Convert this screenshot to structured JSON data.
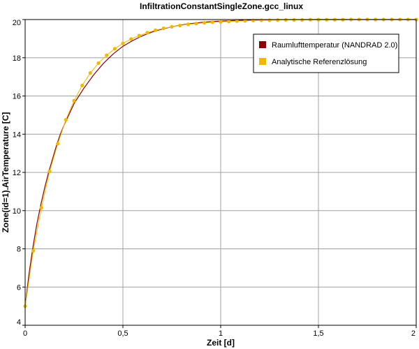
{
  "chart_data": {
    "type": "line",
    "title": "InfiltrationConstantSingleZone.gcc_linux",
    "xlabel": "Zeit [d]",
    "ylabel": "Zone(id=1).AirTemperature [C]",
    "xlim": [
      0,
      2
    ],
    "ylim": [
      4,
      20
    ],
    "x_ticks": [
      {
        "value": 0,
        "label": "0"
      },
      {
        "value": 0.5,
        "label": "0,5"
      },
      {
        "value": 1,
        "label": "1"
      },
      {
        "value": 1.5,
        "label": "1,5"
      },
      {
        "value": 2,
        "label": "2"
      }
    ],
    "y_ticks": [
      {
        "value": 4,
        "label": "4"
      },
      {
        "value": 6,
        "label": "6"
      },
      {
        "value": 8,
        "label": "8"
      },
      {
        "value": 10,
        "label": "10"
      },
      {
        "value": 12,
        "label": "12"
      },
      {
        "value": 14,
        "label": "14"
      },
      {
        "value": 16,
        "label": "16"
      },
      {
        "value": 18,
        "label": "18"
      },
      {
        "value": 20,
        "label": "20"
      }
    ],
    "grid": true,
    "legend_position": "top-right",
    "series": [
      {
        "name": "Raumlufttemperatur (NANDRAD 2.0)",
        "color": "#8b0000",
        "markers": false,
        "points": [
          [
            0,
            5.0
          ],
          [
            0.02,
            6.7
          ],
          [
            0.04,
            8.1
          ],
          [
            0.06,
            9.3
          ],
          [
            0.08,
            10.3
          ],
          [
            0.1,
            11.2
          ],
          [
            0.12,
            12.0
          ],
          [
            0.14,
            12.7
          ],
          [
            0.16,
            13.4
          ],
          [
            0.18,
            14.0
          ],
          [
            0.2,
            14.5
          ],
          [
            0.25,
            15.6
          ],
          [
            0.3,
            16.4
          ],
          [
            0.35,
            17.1
          ],
          [
            0.4,
            17.7
          ],
          [
            0.45,
            18.2
          ],
          [
            0.5,
            18.6
          ],
          [
            0.55,
            18.9
          ],
          [
            0.6,
            19.15
          ],
          [
            0.65,
            19.35
          ],
          [
            0.7,
            19.5
          ],
          [
            0.75,
            19.62
          ],
          [
            0.8,
            19.72
          ],
          [
            0.85,
            19.79
          ],
          [
            0.9,
            19.85
          ],
          [
            0.95,
            19.89
          ],
          [
            1.0,
            19.92
          ],
          [
            1.1,
            19.96
          ],
          [
            1.2,
            19.98
          ],
          [
            1.3,
            19.99
          ],
          [
            1.5,
            20.0
          ],
          [
            1.75,
            20.0
          ],
          [
            2.0,
            20.0
          ]
        ]
      },
      {
        "name": "Analytische Referenzlösung",
        "color": "#f0b800",
        "markers": true,
        "points": [
          [
            0,
            5.0
          ],
          [
            0.0417,
            7.9
          ],
          [
            0.0833,
            10.15
          ],
          [
            0.125,
            12.05
          ],
          [
            0.1667,
            13.5
          ],
          [
            0.2083,
            14.75
          ],
          [
            0.25,
            15.75
          ],
          [
            0.2917,
            16.55
          ],
          [
            0.3333,
            17.2
          ],
          [
            0.375,
            17.72
          ],
          [
            0.4167,
            18.13
          ],
          [
            0.4583,
            18.47
          ],
          [
            0.5,
            18.75
          ],
          [
            0.5417,
            18.98
          ],
          [
            0.5833,
            19.16
          ],
          [
            0.625,
            19.31
          ],
          [
            0.6667,
            19.44
          ],
          [
            0.7083,
            19.54
          ],
          [
            0.75,
            19.62
          ],
          [
            0.7917,
            19.69
          ],
          [
            0.8333,
            19.75
          ],
          [
            0.875,
            19.79
          ],
          [
            0.9167,
            19.83
          ],
          [
            0.9583,
            19.86
          ],
          [
            1.0,
            19.88
          ],
          [
            1.0417,
            19.9
          ],
          [
            1.0833,
            19.92
          ],
          [
            1.125,
            19.93
          ],
          [
            1.1667,
            19.95
          ],
          [
            1.2083,
            19.96
          ],
          [
            1.25,
            19.96
          ],
          [
            1.2917,
            19.97
          ],
          [
            1.3333,
            19.98
          ],
          [
            1.375,
            19.98
          ],
          [
            1.4167,
            19.98
          ],
          [
            1.4583,
            19.99
          ],
          [
            1.5,
            19.99
          ],
          [
            1.5417,
            19.99
          ],
          [
            1.5833,
            19.99
          ],
          [
            1.625,
            19.99
          ],
          [
            1.6667,
            20.0
          ],
          [
            1.7083,
            20.0
          ],
          [
            1.75,
            20.0
          ],
          [
            1.7917,
            20.0
          ],
          [
            1.8333,
            20.0
          ],
          [
            1.875,
            20.0
          ],
          [
            1.9167,
            20.0
          ],
          [
            1.9583,
            20.0
          ],
          [
            2.0,
            20.0
          ]
        ]
      }
    ]
  }
}
